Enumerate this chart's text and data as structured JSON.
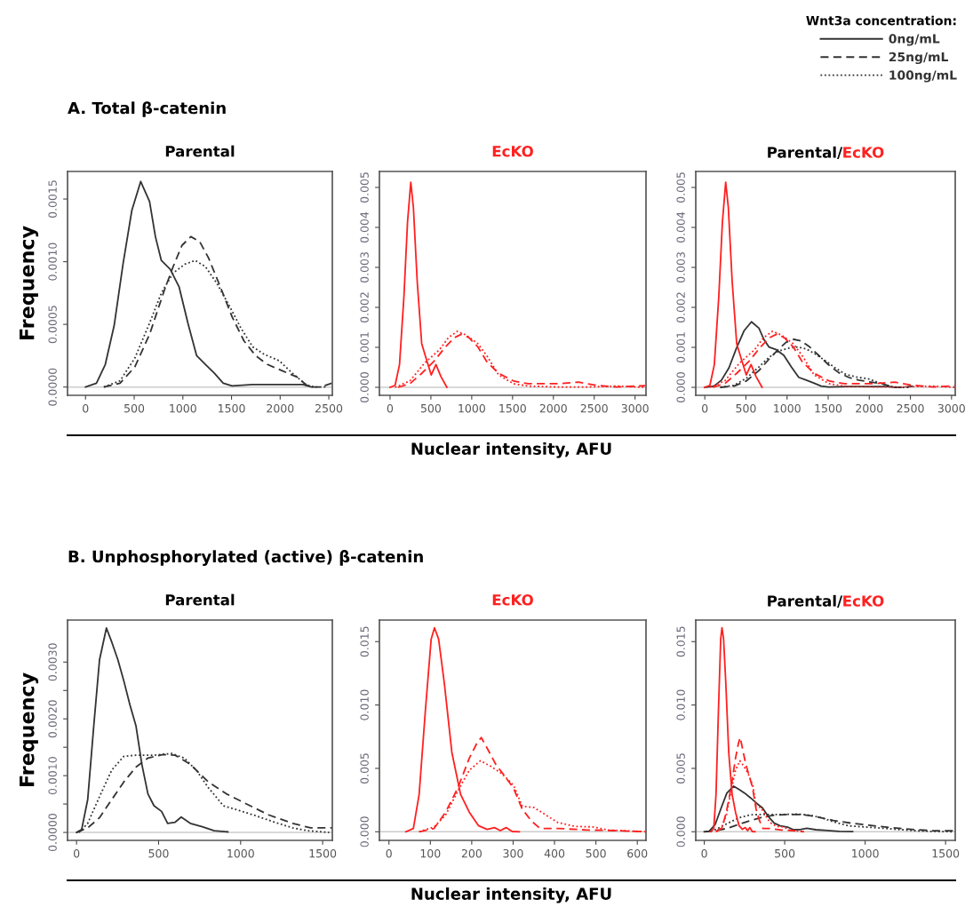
{
  "chart_data": [
    {
      "type": "line",
      "title": "Parental",
      "ylabel": "Frequency",
      "annotations": [
        "A. Total β-catenin"
      ],
      "legend": "top right",
      "legend_title": "Wnt3a concentration:",
      "grid": false,
      "marker": "none",
      "xlim": [
        -185,
        2536
      ],
      "xticks": [
        0,
        500,
        1000,
        1500,
        2000,
        2500
      ],
      "ylim": [
        -6.6e-05,
        0.00172
      ],
      "yticks": [
        {
          "value": 0,
          "label": "0.0000"
        },
        0.0005,
        {
          "value": 0.001,
          "label": "0.0010"
        },
        0.0015
      ],
      "ref_lines": [
        {
          "axis": "y",
          "value": 0,
          "color": "#cccccc"
        }
      ],
      "series": [
        {
          "name": "0ng/mL",
          "color": "#333333",
          "line_style": "solid",
          "x": [
            0,
            112,
            203,
            294,
            385,
            476,
            567,
            658,
            718,
            779,
            870,
            961,
            1052,
            1142,
            1233,
            1324,
            1415,
            1506,
            1718,
            2021,
            2233,
            2324
          ],
          "values": [
            0,
            3e-05,
            0.00018,
            0.00049,
            0.00098,
            0.00141,
            0.00164,
            0.00148,
            0.0012,
            0.00101,
            0.00094,
            0.0008,
            0.00051,
            0.00025,
            0.00018,
            0.00011,
            3e-05,
            1e-05,
            2e-05,
            2e-05,
            2e-05,
            0
          ]
        },
        {
          "name": "25ng/mL",
          "color": "#333333",
          "line_style": "dashed",
          "x": [
            188,
            355,
            506,
            658,
            809,
            900,
            991,
            1082,
            1173,
            1264,
            1385,
            1506,
            1627,
            1748,
            1870,
            2021,
            2173,
            2294,
            2415,
            2530
          ],
          "values": [
            0,
            3e-05,
            0.00016,
            0.00042,
            0.00077,
            0.00096,
            0.00113,
            0.0012,
            0.00116,
            0.00103,
            0.0008,
            0.00056,
            0.00037,
            0.00025,
            0.00018,
            0.00013,
            8e-05,
            0,
            0,
            3e-05
          ]
        },
        {
          "name": "100ng/mL",
          "color": "#333333",
          "line_style": "dotted",
          "x": [
            188,
            355,
            506,
            658,
            779,
            900,
            1021,
            1127,
            1233,
            1355,
            1476,
            1597,
            1718,
            1839,
            1991,
            2112,
            2264,
            2355,
            2476
          ],
          "values": [
            0,
            5e-05,
            0.00023,
            0.00051,
            0.00075,
            0.00091,
            0.00098,
            0.00101,
            0.00096,
            0.00082,
            0.00065,
            0.00047,
            0.00032,
            0.00026,
            0.00021,
            0.00012,
            2e-05,
            0,
            0
          ]
        }
      ]
    },
    {
      "type": "line",
      "title": "EcKO",
      "xlabel": "Nuclear intensity, AFU",
      "grid": false,
      "marker": "none",
      "xlim": [
        -130,
        3134
      ],
      "xticks": [
        0,
        500,
        1000,
        1500,
        2000,
        2500,
        3000
      ],
      "ylim": [
        -0.0002,
        0.0054
      ],
      "yticks": [
        {
          "value": 0,
          "label": "0.000"
        },
        0.001,
        0.002,
        0.003,
        0.004,
        0.005
      ],
      "ref_lines": [
        {
          "axis": "y",
          "value": 0,
          "color": "#cccccc"
        }
      ],
      "series": [
        {
          "color": "#ff2020",
          "line_style": "solid",
          "x": [
            0,
            62,
            116,
            170,
            214,
            254,
            286,
            333,
            388,
            442,
            504,
            562,
            623,
            696
          ],
          "values": [
            0,
            5e-05,
            0.00057,
            0.00227,
            0.00413,
            0.00513,
            0.0045,
            0.00264,
            0.00109,
            0.00072,
            0.00031,
            0.00057,
            0.00027,
            0
          ]
        },
        {
          "color": "#ff2020",
          "line_style": "dashed",
          "x": [
            98,
            243,
            388,
            533,
            678,
            786,
            877,
            967,
            1076,
            1185,
            1330,
            1511,
            1692,
            1873,
            2054,
            2308,
            2525,
            2779,
            3123
          ],
          "values": [
            0,
            9e-05,
            0.00035,
            0.00064,
            0.00101,
            0.00124,
            0.00133,
            0.00124,
            0.00101,
            0.00064,
            0.00035,
            0.00016,
            9e-05,
            9e-05,
            9e-05,
            0.00013,
            5e-05,
            1e-05,
            4e-05
          ]
        },
        {
          "color": "#ff2020",
          "line_style": "dotted",
          "x": [
            62,
            243,
            424,
            605,
            714,
            822,
            931,
            1076,
            1185,
            1330,
            1511,
            1692,
            2054,
            2417,
            2779,
            3123
          ],
          "values": [
            0,
            0.00016,
            0.00061,
            0.00094,
            0.00124,
            0.0014,
            0.00131,
            0.00109,
            0.00079,
            0.00031,
            9e-05,
            3e-05,
            1e-05,
            1e-05,
            3e-05,
            0
          ]
        }
      ]
    },
    {
      "type": "line",
      "title": "Parental/EcKO",
      "grid": false,
      "marker": "none",
      "xlim": [
        -110,
        3045
      ],
      "xticks": [
        0,
        500,
        1000,
        1500,
        2000,
        2500,
        3000
      ],
      "ylim": [
        -0.0002,
        0.0054
      ],
      "yticks": [
        {
          "value": 0,
          "label": "0.000"
        },
        0.001,
        0.002,
        0.003,
        0.004,
        0.005
      ],
      "ref_lines": [
        {
          "axis": "y",
          "value": 0,
          "color": "#cccccc"
        }
      ],
      "series": [
        {
          "color": "#333333",
          "line_style": "solid",
          "x": [
            0,
            112,
            203,
            294,
            385,
            476,
            567,
            658,
            718,
            779,
            870,
            961,
            1052,
            1142,
            1233,
            1324,
            1415,
            1506,
            1718,
            2021,
            2233,
            2324
          ],
          "values": [
            0,
            3e-05,
            0.00018,
            0.00049,
            0.00098,
            0.00141,
            0.00164,
            0.00148,
            0.0012,
            0.00101,
            0.00094,
            0.0008,
            0.00051,
            0.00025,
            0.00018,
            0.00011,
            3e-05,
            1e-05,
            2e-05,
            2e-05,
            2e-05,
            0
          ]
        },
        {
          "color": "#333333",
          "line_style": "dashed",
          "x": [
            188,
            355,
            506,
            658,
            809,
            900,
            991,
            1082,
            1173,
            1264,
            1385,
            1506,
            1627,
            1748,
            1870,
            2021,
            2173,
            2294,
            2415,
            2530
          ],
          "values": [
            0,
            3e-05,
            0.00016,
            0.00042,
            0.00077,
            0.00096,
            0.00113,
            0.0012,
            0.00116,
            0.00103,
            0.0008,
            0.00056,
            0.00037,
            0.00025,
            0.00018,
            0.00013,
            8e-05,
            0,
            0,
            3e-05
          ]
        },
        {
          "color": "#333333",
          "line_style": "dotted",
          "x": [
            188,
            355,
            506,
            658,
            779,
            900,
            1021,
            1127,
            1233,
            1355,
            1476,
            1597,
            1718,
            1839,
            1991,
            2112,
            2264,
            2355,
            2476
          ],
          "values": [
            0,
            5e-05,
            0.00023,
            0.00051,
            0.00075,
            0.00091,
            0.00098,
            0.00101,
            0.00096,
            0.00082,
            0.00065,
            0.00047,
            0.00032,
            0.00026,
            0.00021,
            0.00012,
            2e-05,
            0,
            0
          ]
        },
        {
          "color": "#ff2020",
          "line_style": "solid",
          "x": [
            0,
            62,
            116,
            170,
            214,
            254,
            286,
            333,
            388,
            442,
            504,
            562,
            623,
            696
          ],
          "values": [
            0,
            5e-05,
            0.00057,
            0.00227,
            0.00413,
            0.00513,
            0.0045,
            0.00264,
            0.00109,
            0.00072,
            0.00031,
            0.00057,
            0.00027,
            0
          ]
        },
        {
          "color": "#ff2020",
          "line_style": "dashed",
          "x": [
            98,
            243,
            388,
            533,
            678,
            786,
            877,
            967,
            1076,
            1185,
            1330,
            1511,
            1692,
            1873,
            2054,
            2308,
            2525,
            2779,
            3040
          ],
          "values": [
            0,
            9e-05,
            0.00035,
            0.00064,
            0.00101,
            0.00124,
            0.00133,
            0.00124,
            0.00101,
            0.00064,
            0.00035,
            0.00016,
            9e-05,
            9e-05,
            9e-05,
            0.00013,
            5e-05,
            1e-05,
            4e-05
          ]
        },
        {
          "color": "#ff2020",
          "line_style": "dotted",
          "x": [
            62,
            243,
            424,
            605,
            714,
            822,
            931,
            1076,
            1185,
            1330,
            1511,
            1692,
            2054,
            2417,
            2779,
            3040
          ],
          "values": [
            0,
            0.00016,
            0.00061,
            0.00094,
            0.00124,
            0.0014,
            0.00131,
            0.00109,
            0.00079,
            0.00031,
            9e-05,
            3e-05,
            1e-05,
            1e-05,
            3e-05,
            0
          ]
        }
      ]
    },
    {
      "type": "line",
      "title": "Parental",
      "ylabel": "Frequency",
      "annotations": [
        "B. Unphosphorylated (active) β-catenin"
      ],
      "grid": false,
      "marker": "none",
      "xlim": [
        -55,
        1559
      ],
      "xticks": [
        0,
        500,
        1000,
        1500
      ],
      "ylim": [
        -0.00014,
        0.00374
      ],
      "yticks": [
        {
          "value": 0,
          "label": "0.0000"
        },
        {
          "value": 0.0005,
          "label": null
        },
        {
          "value": 0.001,
          "label": "0.0010"
        },
        {
          "value": 0.0015,
          "label": null
        },
        {
          "value": 0.002,
          "label": "0.0020"
        },
        {
          "value": 0.0025,
          "label": null
        },
        {
          "value": 0.003,
          "label": "0.0030"
        }
      ],
      "ref_lines": [
        {
          "axis": "y",
          "value": 0,
          "color": "#cccccc"
        }
      ],
      "series": [
        {
          "color": "#333333",
          "line_style": "solid",
          "x": [
            0,
            31,
            68,
            105,
            140,
            182,
            215,
            252,
            288,
            325,
            362,
            398,
            435,
            472,
            518,
            555,
            601,
            638,
            693,
            766,
            839,
            922
          ],
          "values": [
            0,
            5e-05,
            0.00058,
            0.00188,
            0.00304,
            0.0036,
            0.00335,
            0.00304,
            0.00267,
            0.00225,
            0.00188,
            0.0012,
            0.00068,
            0.00047,
            0.00037,
            0.00016,
            0.00018,
            0.00027,
            0.00016,
            0.0001,
            3e-05,
            1e-05
          ]
        },
        {
          "color": "#333333",
          "line_style": "dashed",
          "x": [
            0,
            68,
            140,
            215,
            288,
            362,
            435,
            527,
            601,
            693,
            803,
            913,
            1023,
            1170,
            1317,
            1427,
            1559
          ],
          "values": [
            0,
            8e-05,
            0.00026,
            0.00058,
            0.00089,
            0.00115,
            0.00131,
            0.00137,
            0.00136,
            0.0012,
            0.00089,
            0.00068,
            0.00052,
            0.00031,
            0.00016,
            8e-05,
            8e-05
          ]
        },
        {
          "color": "#333333",
          "line_style": "dotted",
          "x": [
            15,
            68,
            140,
            215,
            288,
            362,
            472,
            582,
            656,
            729,
            803,
            895,
            987,
            1097,
            1207,
            1317,
            1409,
            1540
          ],
          "values": [
            0,
            0.00016,
            0.00063,
            0.0011,
            0.00134,
            0.00136,
            0.00136,
            0.00139,
            0.00131,
            0.0011,
            0.00079,
            0.00047,
            0.00039,
            0.00029,
            0.00018,
            8e-05,
            3e-05,
            0
          ]
        }
      ]
    },
    {
      "type": "line",
      "title": "EcKO",
      "xlabel": "Nuclear intensity, AFU",
      "grid": false,
      "marker": "none",
      "xlim": [
        -23,
        621
      ],
      "xticks": [
        0,
        100,
        200,
        300,
        400,
        500,
        600
      ],
      "ylim": [
        -0.00068,
        0.0167
      ],
      "yticks": [
        {
          "value": 0,
          "label": "0.000"
        },
        0.005,
        {
          "value": 0.01,
          "label": "0.010"
        },
        0.015
      ],
      "ref_lines": [
        {
          "axis": "y",
          "value": 0,
          "color": "#cccccc"
        }
      ],
      "series": [
        {
          "color": "#ff2020",
          "line_style": "solid",
          "x": [
            41,
            59,
            73,
            88,
            102,
            110,
            120,
            134,
            152,
            173,
            194,
            216,
            237,
            255,
            269,
            283,
            298,
            315
          ],
          "values": [
            0,
            0.00026,
            0.00296,
            0.00955,
            0.0152,
            0.01609,
            0.0152,
            0.01167,
            0.00626,
            0.00296,
            0.00155,
            0.00049,
            0.00019,
            0.00033,
            9e-05,
            0.00033,
            2e-05,
            0
          ]
        },
        {
          "color": "#ff2020",
          "line_style": "dashed",
          "x": [
            73,
            109,
            137,
            166,
            194,
            212,
            223,
            237,
            258,
            280,
            301,
            322,
            344,
            365,
            408,
            479,
            550,
            621
          ],
          "values": [
            0,
            0.00026,
            0.00155,
            0.00343,
            0.00579,
            0.00696,
            0.00743,
            0.00661,
            0.00532,
            0.00438,
            0.00343,
            0.00179,
            0.00085,
            0.00026,
            0.00026,
            0.00014,
            9e-05,
            0
          ]
        },
        {
          "color": "#ff2020",
          "line_style": "dotted",
          "x": [
            73,
            109,
            137,
            166,
            194,
            221,
            244,
            272,
            301,
            322,
            351,
            379,
            408,
            450,
            493,
            529,
            621
          ],
          "values": [
            0,
            0.00038,
            0.00132,
            0.0032,
            0.00485,
            0.0056,
            0.0052,
            0.00461,
            0.00367,
            0.00202,
            0.00191,
            0.00132,
            0.00073,
            0.00042,
            0.00038,
            0.00014,
            0
          ]
        }
      ]
    },
    {
      "type": "line",
      "title": "Parental/EcKO",
      "grid": false,
      "marker": "none",
      "xlim": [
        -53,
        1560
      ],
      "xticks": [
        0,
        500,
        1000,
        1500
      ],
      "ylim": [
        -0.00068,
        0.0167
      ],
      "yticks": [
        {
          "value": 0,
          "label": "0.000"
        },
        0.005,
        {
          "value": 0.01,
          "label": "0.010"
        },
        0.015
      ],
      "ref_lines": [
        {
          "axis": "y",
          "value": 0,
          "color": "#cccccc"
        }
      ],
      "series": [
        {
          "color": "#333333",
          "line_style": "solid",
          "x": [
            0,
            31,
            68,
            105,
            140,
            182,
            215,
            252,
            288,
            325,
            362,
            398,
            435,
            472,
            518,
            555,
            601,
            638,
            693,
            766,
            839,
            922
          ],
          "values": [
            0,
            5e-05,
            0.00058,
            0.00188,
            0.00304,
            0.0036,
            0.00335,
            0.00304,
            0.00267,
            0.00225,
            0.00188,
            0.0012,
            0.00068,
            0.00047,
            0.00037,
            0.00016,
            0.00018,
            0.00027,
            0.00016,
            0.0001,
            3e-05,
            1e-05
          ]
        },
        {
          "color": "#333333",
          "line_style": "dashed",
          "x": [
            0,
            68,
            140,
            215,
            288,
            362,
            435,
            527,
            601,
            693,
            803,
            913,
            1023,
            1170,
            1317,
            1427,
            1559
          ],
          "values": [
            0,
            8e-05,
            0.00026,
            0.00058,
            0.00089,
            0.00115,
            0.00131,
            0.00137,
            0.00136,
            0.0012,
            0.00089,
            0.00068,
            0.00052,
            0.00031,
            0.00016,
            8e-05,
            8e-05
          ]
        },
        {
          "color": "#333333",
          "line_style": "dotted",
          "x": [
            15,
            68,
            140,
            215,
            288,
            362,
            472,
            582,
            656,
            729,
            803,
            895,
            987,
            1097,
            1207,
            1317,
            1409,
            1540
          ],
          "values": [
            0,
            0.00016,
            0.00063,
            0.0011,
            0.00134,
            0.00136,
            0.00136,
            0.00139,
            0.00131,
            0.0011,
            0.00079,
            0.00047,
            0.00039,
            0.00029,
            0.00018,
            8e-05,
            3e-05,
            0
          ]
        },
        {
          "color": "#ff2020",
          "line_style": "solid",
          "x": [
            41,
            59,
            73,
            88,
            102,
            110,
            120,
            134,
            152,
            173,
            194,
            216,
            237,
            255,
            269,
            283,
            298,
            315
          ],
          "values": [
            0,
            0.00026,
            0.00296,
            0.00955,
            0.0152,
            0.01609,
            0.0152,
            0.01167,
            0.00626,
            0.00296,
            0.00155,
            0.00049,
            0.00019,
            0.00033,
            9e-05,
            0.00033,
            2e-05,
            0
          ]
        },
        {
          "color": "#ff2020",
          "line_style": "dashed",
          "x": [
            73,
            109,
            137,
            166,
            194,
            212,
            223,
            237,
            258,
            280,
            301,
            322,
            344,
            365,
            408,
            479,
            550,
            621
          ],
          "values": [
            0,
            0.00026,
            0.00155,
            0.00343,
            0.00579,
            0.00696,
            0.00743,
            0.00661,
            0.00532,
            0.00438,
            0.00343,
            0.00179,
            0.00085,
            0.00026,
            0.00026,
            0.00014,
            9e-05,
            0
          ]
        },
        {
          "color": "#ff2020",
          "line_style": "dotted",
          "x": [
            73,
            109,
            137,
            166,
            194,
            221,
            244,
            272,
            301,
            322,
            351,
            379,
            408,
            450,
            493,
            529,
            621
          ],
          "values": [
            0,
            0.00038,
            0.00132,
            0.0032,
            0.00485,
            0.0056,
            0.0052,
            0.00461,
            0.00367,
            0.00202,
            0.00191,
            0.00132,
            0.00073,
            0.00042,
            0.00038,
            0.00014,
            0
          ]
        }
      ]
    }
  ]
}
